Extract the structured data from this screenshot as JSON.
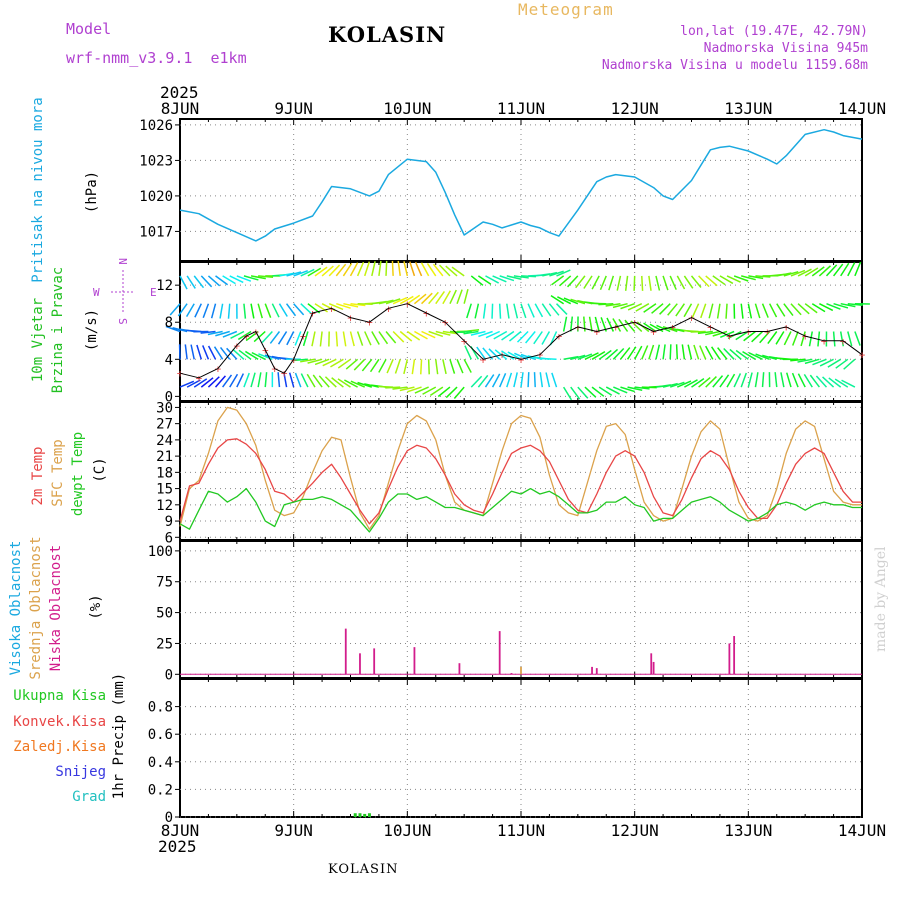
{
  "header": {
    "model_label": "Model",
    "model_name": "wrf-nmm_v3.9.1  e1km",
    "station": "KOLASIN",
    "product": "Meteogram",
    "lonlat": "lon,lat (19.47E, 42.79N)",
    "elevation": "Nadmorska Visina 945m",
    "model_elevation": "Nadmorska Visina u modelu 1159.68m",
    "year_top": "2025",
    "year_bottom": "2025",
    "footer_station": "KOLASIN",
    "watermark": "made by Angel"
  },
  "colors": {
    "pressure": "#1ba9e0",
    "wind_label": "#22c022",
    "t2m": "#e84646",
    "sfc": "#dba24c",
    "dewpt": "#22c822",
    "high_cloud": "#1ba9e0",
    "mid_cloud": "#dba24c",
    "low_cloud": "#d21d8c",
    "total_precip": "#22c822",
    "conv_precip": "#e84646",
    "frz_precip": "#f07820",
    "snow": "#3838e0",
    "graupel": "#22c0c0",
    "header_purple": "#b040d0",
    "header_orange": "#e8b860"
  },
  "chart_data": [
    {
      "type": "line",
      "title": "Pritisak na nivou mora",
      "ylabel": "(hPa)",
      "ylim": [
        1014.5,
        1026.5
      ],
      "yticks": [
        1017,
        1020,
        1023,
        1026
      ],
      "x_labels": [
        "8JUN",
        "9JUN",
        "10JUN",
        "11JUN",
        "12JUN",
        "13JUN",
        "14JUN"
      ],
      "x_unit": "hours from 8JUN 00UTC",
      "grid": true,
      "series": [
        {
          "name": "Pritisak na nivou mora",
          "x": [
            0,
            4,
            8,
            12,
            16,
            18,
            20,
            24,
            28,
            30,
            32,
            36,
            40,
            42,
            44,
            48,
            52,
            54,
            56,
            58,
            60,
            64,
            66,
            68,
            72,
            74,
            76,
            78,
            80,
            84,
            88,
            90,
            92,
            96,
            100,
            102,
            104,
            108,
            112,
            114,
            116,
            120,
            124,
            126,
            128,
            132,
            136,
            138,
            140,
            144
          ],
          "y": [
            1018.8,
            1018.5,
            1017.6,
            1016.9,
            1016.2,
            1016.6,
            1017.2,
            1017.7,
            1018.3,
            1019.5,
            1020.8,
            1020.6,
            1020.0,
            1020.4,
            1021.8,
            1023.1,
            1022.9,
            1022.0,
            1020.3,
            1018.4,
            1016.7,
            1017.8,
            1017.6,
            1017.3,
            1017.8,
            1017.5,
            1017.3,
            1016.9,
            1016.6,
            1018.8,
            1021.2,
            1021.6,
            1021.8,
            1021.6,
            1020.7,
            1020.0,
            1019.7,
            1021.3,
            1023.9,
            1024.1,
            1024.2,
            1023.8,
            1023.1,
            1022.7,
            1023.4,
            1025.2,
            1025.6,
            1025.4,
            1025.1,
            1024.8
          ]
        }
      ]
    },
    {
      "type": "line",
      "title": "10m Vjetar Brzina i Pravac",
      "ylabel": "(m/s)",
      "ylim": [
        -0.5,
        14.5
      ],
      "yticks": [
        0,
        4,
        8,
        12
      ],
      "grid": true,
      "direction_legend": {
        "n": "N",
        "s": "S",
        "e": "E",
        "w": "W"
      },
      "series": [
        {
          "name": "10m Vjetar Brzina",
          "x": [
            0,
            4,
            8,
            12,
            14,
            16,
            18,
            20,
            22,
            24,
            26,
            28,
            32,
            36,
            40,
            44,
            48,
            52,
            56,
            60,
            64,
            68,
            72,
            76,
            80,
            84,
            88,
            92,
            96,
            100,
            104,
            108,
            112,
            116,
            120,
            124,
            128,
            132,
            136,
            140,
            144
          ],
          "y": [
            2.5,
            2.0,
            3.0,
            5.5,
            6.5,
            7.0,
            5.0,
            3.0,
            2.5,
            4.0,
            6.5,
            9.0,
            9.5,
            8.5,
            8.0,
            9.5,
            10.0,
            9.0,
            8.0,
            6.0,
            4.0,
            4.5,
            4.0,
            4.5,
            6.5,
            7.5,
            7.0,
            7.5,
            8.0,
            7.0,
            7.5,
            8.5,
            7.5,
            6.5,
            7.0,
            7.0,
            7.5,
            6.5,
            6.0,
            6.0,
            4.5
          ]
        }
      ]
    },
    {
      "type": "line",
      "title": "2m Temp / SFC Temp / dewpt Temp",
      "ylabel": "(C)",
      "ylim": [
        5.5,
        31
      ],
      "yticks": [
        6,
        9,
        12,
        15,
        18,
        21,
        24,
        27,
        30
      ],
      "grid": true,
      "series": [
        {
          "name": "2m Temp",
          "x": [
            0,
            2,
            4,
            6,
            8,
            10,
            12,
            14,
            16,
            18,
            20,
            22,
            24,
            26,
            28,
            30,
            32,
            34,
            36,
            38,
            40,
            42,
            44,
            46,
            48,
            50,
            52,
            54,
            56,
            58,
            60,
            62,
            64,
            66,
            68,
            70,
            72,
            74,
            76,
            78,
            80,
            82,
            84,
            86,
            88,
            90,
            92,
            94,
            96,
            98,
            100,
            102,
            104,
            106,
            108,
            110,
            112,
            114,
            116,
            118,
            120,
            122,
            124,
            126,
            128,
            130,
            132,
            134,
            136,
            138,
            140,
            142,
            144
          ],
          "y": [
            9.0,
            15.5,
            16.0,
            19.5,
            22.5,
            24.0,
            24.2,
            23.2,
            21.5,
            18.5,
            14.5,
            14.0,
            12.5,
            14.2,
            16.0,
            18.0,
            19.5,
            17.0,
            14.0,
            11.0,
            8.5,
            10.5,
            15.0,
            19.0,
            22.0,
            23.0,
            22.5,
            20.5,
            17.5,
            14.0,
            12.0,
            11.0,
            10.5,
            14.0,
            18.0,
            21.5,
            22.5,
            23.0,
            22.0,
            20.0,
            16.5,
            13.0,
            11.0,
            10.5,
            14.0,
            18.0,
            21.0,
            22.0,
            21.0,
            18.0,
            13.5,
            10.5,
            10.0,
            13.0,
            17.0,
            20.5,
            22.0,
            21.0,
            18.5,
            14.5,
            11.5,
            9.5,
            9.5,
            12.0,
            16.0,
            19.5,
            21.5,
            22.5,
            21.5,
            18.0,
            14.5,
            12.5,
            12.5
          ]
        },
        {
          "name": "SFC Temp",
          "x": [
            0,
            2,
            4,
            6,
            8,
            10,
            12,
            14,
            16,
            18,
            20,
            22,
            24,
            26,
            28,
            30,
            32,
            34,
            36,
            38,
            40,
            42,
            44,
            46,
            48,
            50,
            52,
            54,
            56,
            58,
            60,
            62,
            64,
            66,
            68,
            70,
            72,
            74,
            76,
            78,
            80,
            82,
            84,
            86,
            88,
            90,
            92,
            94,
            96,
            98,
            100,
            102,
            104,
            106,
            108,
            110,
            112,
            114,
            116,
            118,
            120,
            122,
            124,
            126,
            128,
            130,
            132,
            134,
            136,
            138,
            140,
            142,
            144
          ],
          "y": [
            8.0,
            15.0,
            16.5,
            21.5,
            27.5,
            30.0,
            29.5,
            27.0,
            23.0,
            16.5,
            11.0,
            10.0,
            10.5,
            13.5,
            18.0,
            22.0,
            24.5,
            24.0,
            17.0,
            10.5,
            7.5,
            10.0,
            16.0,
            22.0,
            27.0,
            28.5,
            27.5,
            24.0,
            17.5,
            12.5,
            11.0,
            10.5,
            10.0,
            16.0,
            22.0,
            27.0,
            28.5,
            28.0,
            24.5,
            17.5,
            12.0,
            10.5,
            10.0,
            16.0,
            22.0,
            26.5,
            27.0,
            25.0,
            18.5,
            12.5,
            10.0,
            9.0,
            9.5,
            15.0,
            21.0,
            25.5,
            27.5,
            26.0,
            19.0,
            12.5,
            9.5,
            9.0,
            10.0,
            15.0,
            21.5,
            26.0,
            27.5,
            26.5,
            20.5,
            14.5,
            12.5,
            12.0,
            12.0
          ]
        },
        {
          "name": "dewpt Temp",
          "x": [
            0,
            2,
            4,
            6,
            8,
            10,
            12,
            14,
            16,
            18,
            20,
            22,
            24,
            26,
            28,
            30,
            32,
            34,
            36,
            38,
            40,
            42,
            44,
            46,
            48,
            50,
            52,
            54,
            56,
            58,
            60,
            62,
            64,
            66,
            68,
            70,
            72,
            74,
            76,
            78,
            80,
            82,
            84,
            86,
            88,
            90,
            92,
            94,
            96,
            98,
            100,
            102,
            104,
            106,
            108,
            110,
            112,
            114,
            116,
            118,
            120,
            122,
            124,
            126,
            128,
            130,
            132,
            134,
            136,
            138,
            140,
            142,
            144
          ],
          "y": [
            8.5,
            7.5,
            11.0,
            14.5,
            14.0,
            12.5,
            13.5,
            15.0,
            12.5,
            9.0,
            8.0,
            12.0,
            12.5,
            13.0,
            13.0,
            13.5,
            13.0,
            12.0,
            11.0,
            9.0,
            7.0,
            9.5,
            12.5,
            14.0,
            14.0,
            13.0,
            13.5,
            12.5,
            11.5,
            11.5,
            11.0,
            10.5,
            10.0,
            11.5,
            13.0,
            14.5,
            14.0,
            15.0,
            14.0,
            14.5,
            13.5,
            12.0,
            10.5,
            10.5,
            11.0,
            12.5,
            12.5,
            13.5,
            12.0,
            11.5,
            9.0,
            9.5,
            9.5,
            11.0,
            12.5,
            13.0,
            13.5,
            12.5,
            11.0,
            10.0,
            9.0,
            9.5,
            10.5,
            12.0,
            12.5,
            12.0,
            11.0,
            12.0,
            12.5,
            12.0,
            12.0,
            11.5,
            11.5
          ]
        }
      ]
    },
    {
      "type": "bar",
      "title": "Visoka Oblacnost / Srednja Oblacnost / Niska Oblacnost",
      "ylabel": "(%)",
      "ylim": [
        -3,
        108
      ],
      "yticks": [
        0,
        25,
        50,
        75,
        100
      ],
      "grid": true,
      "series": [
        {
          "name": "Niska Oblacnost",
          "x": [
            35,
            38,
            41,
            49.5,
            59,
            67.5,
            70,
            87,
            88,
            99.5,
            100,
            116,
            117
          ],
          "y": [
            37,
            17,
            21,
            22,
            9,
            35,
            1,
            6,
            5,
            17,
            10,
            25,
            31
          ]
        },
        {
          "name": "Srednja Oblacnost",
          "x": [
            72
          ],
          "y": [
            6
          ]
        },
        {
          "name": "Visoka Oblacnost",
          "x": [],
          "y": []
        }
      ]
    },
    {
      "type": "bar",
      "title": "1hr Precip",
      "ylabel": "1hr Precip (mm)",
      "ylim": [
        0,
        1.0
      ],
      "yticks": [
        0,
        0.2,
        0.4,
        0.6,
        0.8
      ],
      "grid": true,
      "legend": [
        "Ukupna Kisa",
        "Konvek.Kisa",
        "Zaledj.Kisa",
        "Snijeg",
        "Grad"
      ],
      "series": [
        {
          "name": "Ukupna Kisa",
          "x": [
            37,
            38,
            39,
            40
          ],
          "y": [
            0.02,
            0.02,
            0.015,
            0.02
          ]
        },
        {
          "name": "Konvek.Kisa",
          "x": [],
          "y": []
        },
        {
          "name": "Zaledj.Kisa",
          "x": [],
          "y": []
        },
        {
          "name": "Snijeg",
          "x": [],
          "y": []
        },
        {
          "name": "Grad",
          "x": [],
          "y": []
        }
      ]
    }
  ],
  "panel_labels": {
    "pressure_title": "Pritisak na nivou mora",
    "pressure_unit": "(hPa)",
    "wind_title1": "10m Vjetar",
    "wind_title2": "Brzina i Pravac",
    "wind_unit": "(m/s)",
    "temp_title1": "2m Temp",
    "temp_title2": "SFC Temp",
    "temp_title3": "dewpt Temp",
    "temp_unit": "(C)",
    "cloud_high": "Visoka Oblacnost",
    "cloud_mid": "Srednja Oblacnost",
    "cloud_low": "Niska Oblacnost",
    "cloud_unit": "(%)",
    "precip_unit": "1hr Precip (mm)"
  }
}
